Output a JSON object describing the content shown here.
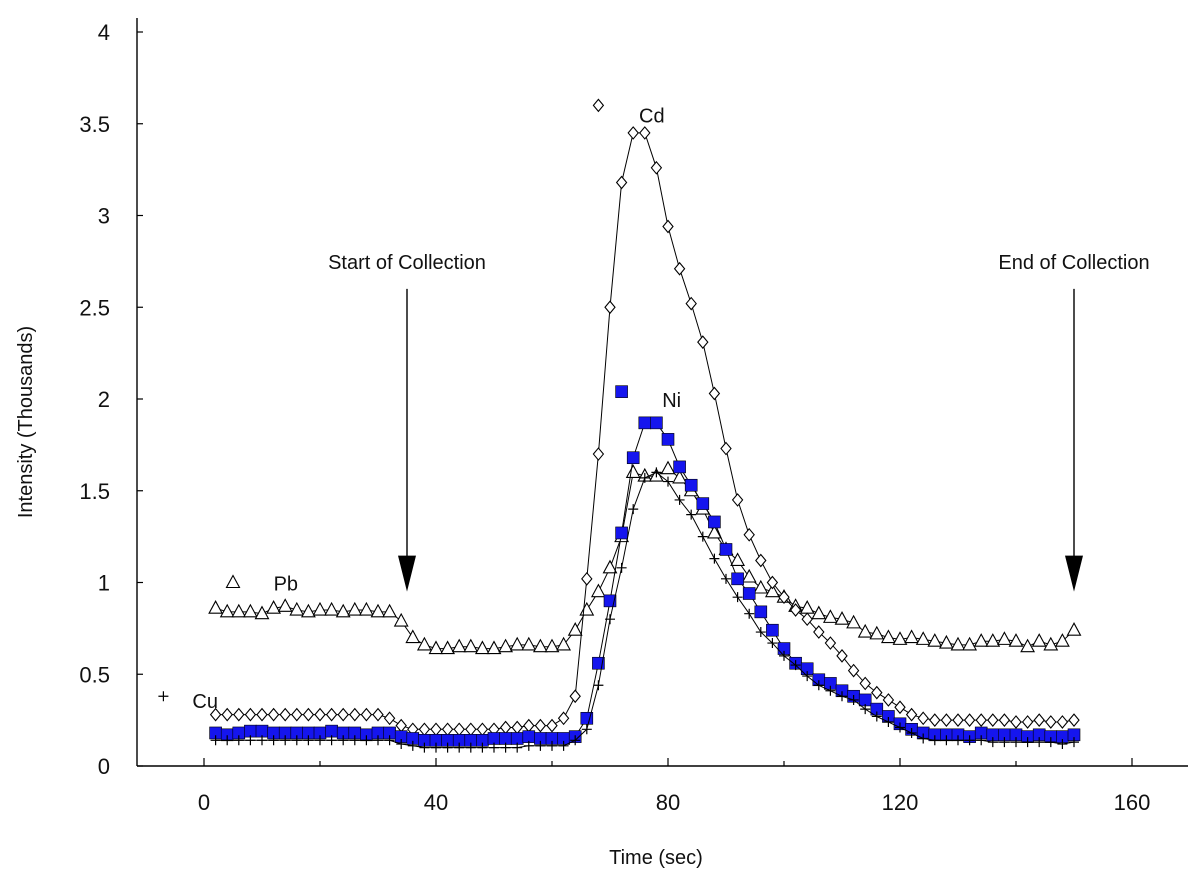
{
  "chart_data": {
    "type": "scatter",
    "xlabel": "Time (sec)",
    "ylabel": "Intensity (Thousands)",
    "xlim": [
      -12,
      170
    ],
    "ylim": [
      0,
      4
    ],
    "x_ticks": [
      "0",
      "40",
      "80",
      "120",
      "160"
    ],
    "y_ticks": [
      "0",
      "0.5",
      "1",
      "1.5",
      "2",
      "2.5",
      "3",
      "3.5",
      "4"
    ],
    "grid": false,
    "annotations": [
      {
        "text": "Start of Collection",
        "x": 35,
        "arrow_from": 2.6,
        "arrow_to": 0.95
      },
      {
        "text": "End of Collection",
        "x": 150,
        "arrow_from": 2.6,
        "arrow_to": 0.95
      }
    ],
    "series": [
      {
        "name": "Pb",
        "marker": "triangle",
        "color": "#000000",
        "legend_marker": {
          "x": 5,
          "y": 1.0
        },
        "label_pos": {
          "x": 12,
          "y": 1.0
        },
        "x": [
          2,
          4,
          6,
          8,
          10,
          12,
          14,
          16,
          18,
          20,
          22,
          24,
          26,
          28,
          30,
          32,
          34,
          36,
          38,
          40,
          42,
          44,
          46,
          48,
          50,
          52,
          54,
          56,
          58,
          60,
          62,
          64,
          66,
          68,
          70,
          72,
          74,
          76,
          78,
          80,
          82,
          84,
          86,
          88,
          90,
          92,
          94,
          96,
          98,
          100,
          102,
          104,
          106,
          108,
          110,
          112,
          114,
          116,
          118,
          120,
          122,
          124,
          126,
          128,
          130,
          132,
          134,
          136,
          138,
          140,
          142,
          144,
          146,
          148,
          150
        ],
        "y": [
          0.86,
          0.84,
          0.84,
          0.84,
          0.83,
          0.86,
          0.87,
          0.85,
          0.84,
          0.85,
          0.85,
          0.84,
          0.85,
          0.85,
          0.84,
          0.84,
          0.79,
          0.7,
          0.66,
          0.64,
          0.64,
          0.65,
          0.65,
          0.64,
          0.64,
          0.65,
          0.66,
          0.66,
          0.65,
          0.65,
          0.66,
          0.74,
          0.85,
          0.95,
          1.08,
          1.25,
          1.6,
          1.58,
          1.58,
          1.62,
          1.57,
          1.5,
          1.4,
          1.27,
          1.18,
          1.12,
          1.03,
          0.97,
          0.95,
          0.92,
          0.87,
          0.86,
          0.83,
          0.81,
          0.8,
          0.78,
          0.73,
          0.72,
          0.7,
          0.69,
          0.7,
          0.69,
          0.68,
          0.67,
          0.66,
          0.66,
          0.68,
          0.68,
          0.69,
          0.68,
          0.65,
          0.68,
          0.66,
          0.68,
          0.74
        ]
      },
      {
        "name": "Cd",
        "marker": "diamond",
        "color": "#000000",
        "label_color": "#7a0f0f",
        "legend_marker": {
          "x": 68,
          "y": 3.6
        },
        "label_pos": {
          "x": 75,
          "y": 3.55
        },
        "x": [
          2,
          4,
          6,
          8,
          10,
          12,
          14,
          16,
          18,
          20,
          22,
          24,
          26,
          28,
          30,
          32,
          34,
          36,
          38,
          40,
          42,
          44,
          46,
          48,
          50,
          52,
          54,
          56,
          58,
          60,
          62,
          64,
          66,
          68,
          70,
          72,
          74,
          76,
          78,
          80,
          82,
          84,
          86,
          88,
          90,
          92,
          94,
          96,
          98,
          100,
          102,
          104,
          106,
          108,
          110,
          112,
          114,
          116,
          118,
          120,
          122,
          124,
          126,
          128,
          130,
          132,
          134,
          136,
          138,
          140,
          142,
          144,
          146,
          148,
          150
        ],
        "y": [
          0.28,
          0.28,
          0.28,
          0.28,
          0.28,
          0.28,
          0.28,
          0.28,
          0.28,
          0.28,
          0.28,
          0.28,
          0.28,
          0.28,
          0.28,
          0.26,
          0.22,
          0.2,
          0.2,
          0.2,
          0.2,
          0.2,
          0.2,
          0.2,
          0.2,
          0.21,
          0.21,
          0.22,
          0.22,
          0.22,
          0.26,
          0.38,
          1.02,
          1.7,
          2.5,
          3.18,
          3.45,
          3.45,
          3.26,
          2.94,
          2.71,
          2.52,
          2.31,
          2.03,
          1.73,
          1.45,
          1.26,
          1.12,
          1.0,
          0.92,
          0.85,
          0.8,
          0.73,
          0.67,
          0.6,
          0.52,
          0.45,
          0.4,
          0.36,
          0.32,
          0.28,
          0.26,
          0.25,
          0.25,
          0.25,
          0.25,
          0.25,
          0.25,
          0.25,
          0.24,
          0.24,
          0.25,
          0.24,
          0.24,
          0.25
        ]
      },
      {
        "name": "Ni",
        "marker": "square",
        "color": "#1515ee",
        "label_color": "#0a0a5a",
        "legend_marker": {
          "x": 72,
          "y": 2.04
        },
        "label_pos": {
          "x": 79,
          "y": 2.0
        },
        "x": [
          2,
          4,
          6,
          8,
          10,
          12,
          14,
          16,
          18,
          20,
          22,
          24,
          26,
          28,
          30,
          32,
          34,
          36,
          38,
          40,
          42,
          44,
          46,
          48,
          50,
          52,
          54,
          56,
          58,
          60,
          62,
          64,
          66,
          68,
          70,
          72,
          74,
          76,
          78,
          80,
          82,
          84,
          86,
          88,
          90,
          92,
          94,
          96,
          98,
          100,
          102,
          104,
          106,
          108,
          110,
          112,
          114,
          116,
          118,
          120,
          122,
          124,
          126,
          128,
          130,
          132,
          134,
          136,
          138,
          140,
          142,
          144,
          146,
          148,
          150
        ],
        "y": [
          0.18,
          0.17,
          0.18,
          0.19,
          0.19,
          0.18,
          0.18,
          0.18,
          0.18,
          0.18,
          0.19,
          0.18,
          0.18,
          0.17,
          0.18,
          0.18,
          0.16,
          0.15,
          0.14,
          0.14,
          0.14,
          0.14,
          0.14,
          0.14,
          0.15,
          0.15,
          0.15,
          0.16,
          0.15,
          0.15,
          0.15,
          0.16,
          0.26,
          0.56,
          0.9,
          1.27,
          1.68,
          1.87,
          1.87,
          1.78,
          1.63,
          1.53,
          1.43,
          1.33,
          1.18,
          1.02,
          0.94,
          0.84,
          0.74,
          0.64,
          0.56,
          0.53,
          0.47,
          0.45,
          0.41,
          0.38,
          0.36,
          0.31,
          0.27,
          0.23,
          0.2,
          0.18,
          0.17,
          0.17,
          0.17,
          0.16,
          0.18,
          0.17,
          0.17,
          0.17,
          0.16,
          0.17,
          0.16,
          0.16,
          0.17
        ]
      },
      {
        "name": "Cu",
        "marker": "plus",
        "color": "#000000",
        "legend_marker": {
          "x": -7,
          "y": 0.38
        },
        "label_pos": {
          "x": -2,
          "y": 0.36
        },
        "x": [
          2,
          4,
          6,
          8,
          10,
          12,
          14,
          16,
          18,
          20,
          22,
          24,
          26,
          28,
          30,
          32,
          34,
          36,
          38,
          40,
          42,
          44,
          46,
          48,
          50,
          52,
          54,
          56,
          58,
          60,
          62,
          64,
          66,
          68,
          70,
          72,
          74,
          76,
          78,
          80,
          82,
          84,
          86,
          88,
          90,
          92,
          94,
          96,
          98,
          100,
          102,
          104,
          106,
          108,
          110,
          112,
          114,
          116,
          118,
          120,
          122,
          124,
          126,
          128,
          130,
          132,
          134,
          136,
          138,
          140,
          142,
          144,
          146,
          148,
          150
        ],
        "y": [
          0.14,
          0.14,
          0.14,
          0.14,
          0.14,
          0.14,
          0.14,
          0.14,
          0.14,
          0.14,
          0.14,
          0.14,
          0.14,
          0.14,
          0.14,
          0.14,
          0.12,
          0.11,
          0.1,
          0.1,
          0.1,
          0.1,
          0.1,
          0.1,
          0.1,
          0.1,
          0.1,
          0.11,
          0.11,
          0.11,
          0.11,
          0.14,
          0.2,
          0.44,
          0.8,
          1.08,
          1.4,
          1.57,
          1.6,
          1.55,
          1.45,
          1.37,
          1.25,
          1.13,
          1.02,
          0.92,
          0.83,
          0.73,
          0.67,
          0.6,
          0.55,
          0.49,
          0.44,
          0.41,
          0.38,
          0.36,
          0.31,
          0.27,
          0.24,
          0.21,
          0.18,
          0.15,
          0.14,
          0.14,
          0.14,
          0.14,
          0.14,
          0.13,
          0.13,
          0.13,
          0.13,
          0.13,
          0.13,
          0.12,
          0.13
        ]
      }
    ]
  }
}
